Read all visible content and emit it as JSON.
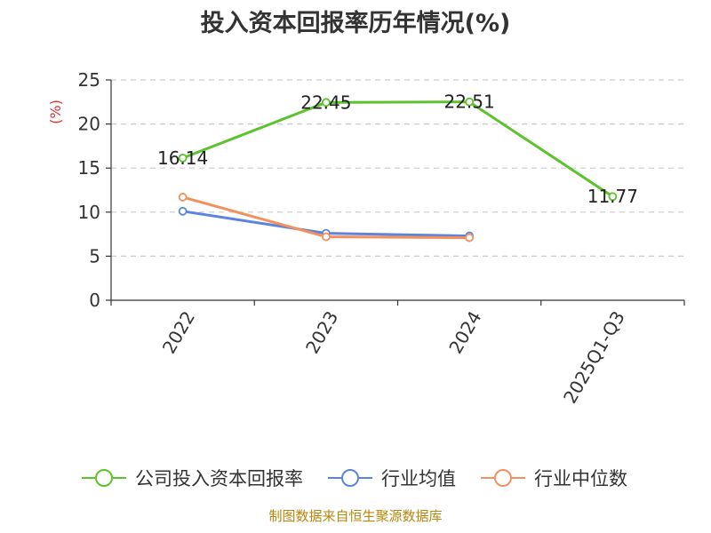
{
  "chart_data": {
    "type": "line",
    "title": "投入资本回报率历年情况(%)",
    "ylabel": "(%)",
    "xlabel": "",
    "categories": [
      "2022",
      "2023",
      "2024",
      "2025Q1-Q3"
    ],
    "ylim": [
      0,
      25
    ],
    "yticks": [
      0,
      5,
      10,
      15,
      20,
      25
    ],
    "grid": true,
    "legend_position": "bottom",
    "series": [
      {
        "name": "公司投入资本回报率",
        "color": "#5cc22e",
        "values": [
          16.14,
          22.45,
          22.51,
          11.77
        ],
        "labels": [
          "16.14",
          "22.45",
          "22.51",
          "11.77"
        ]
      },
      {
        "name": "行业均值",
        "color": "#5b84dc",
        "values": [
          10.1,
          7.6,
          7.3,
          null
        ]
      },
      {
        "name": "行业中位数",
        "color": "#f5905e",
        "values": [
          11.7,
          7.2,
          7.1,
          null
        ]
      }
    ],
    "source": "制图数据来自恒生聚源数据库"
  }
}
